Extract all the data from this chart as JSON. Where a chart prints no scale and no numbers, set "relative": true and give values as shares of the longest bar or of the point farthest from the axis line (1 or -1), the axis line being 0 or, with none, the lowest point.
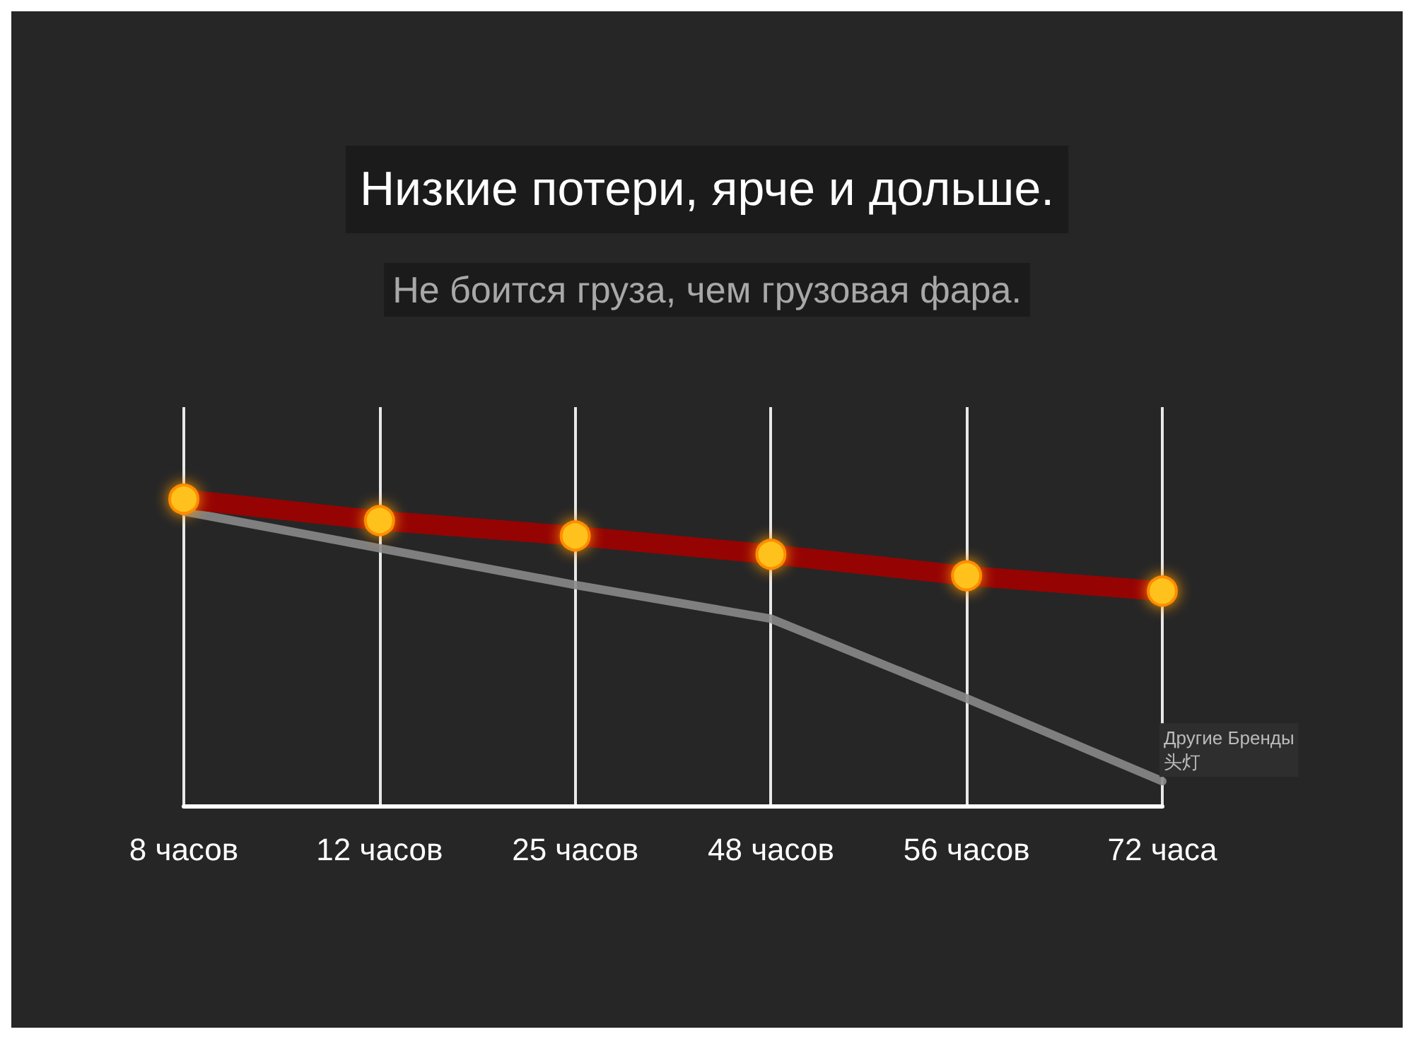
{
  "chart_data": {
    "type": "line",
    "title": "Низкие потери, ярче и дольше.",
    "subtitle": "Не боится груза, чем грузовая фара.",
    "categories": [
      "8 часов",
      "12 часов",
      "25 часов",
      "48 часов",
      "56 часов",
      "72 часа"
    ],
    "relative": true,
    "grid": "x",
    "marker": "circle",
    "legend": false,
    "tick_labels": "x",
    "annotations": [
      "头灯"
    ],
    "series": [
      {
        "color": "#a30000",
        "values": [
          1,
          0.93,
          0.88,
          0.82,
          0.75,
          0.7
        ]
      },
      {
        "name": "Другие Бренды",
        "color": "#8a8a8a",
        "marker": "none",
        "values": [
          0.96,
          0.84,
          0.72,
          0.61,
          0.35,
          0.08
        ]
      }
    ]
  }
}
